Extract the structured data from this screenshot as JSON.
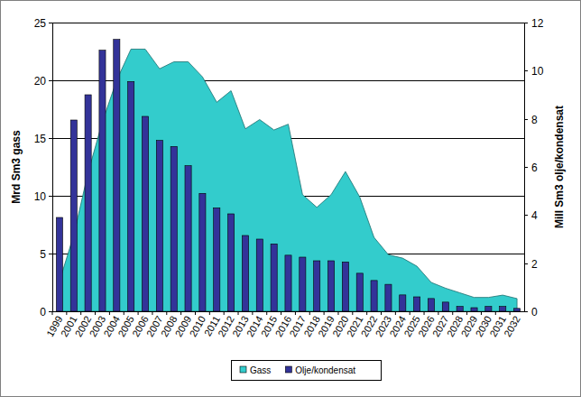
{
  "chart_data": {
    "type": "combo",
    "ylabel": "Mrd Sm3 gass",
    "y2label": "Mill Sm3 olje/kondensat",
    "categories": [
      "1999",
      "2001",
      "2002",
      "2003",
      "2004",
      "2005",
      "2006",
      "2007",
      "2008",
      "2009",
      "2010",
      "2011",
      "2012",
      "2013",
      "2014",
      "2015",
      "2016",
      "2017",
      "2018",
      "2019",
      "2020",
      "2021",
      "2022",
      "2023",
      "2024",
      "2025",
      "2026",
      "2027",
      "2028",
      "2029",
      "2030",
      "2031",
      "2032"
    ],
    "series": [
      {
        "name": "Gass",
        "type": "area",
        "color": "#33cccc",
        "values": [
          2.6,
          6.6,
          12.0,
          16.4,
          20.0,
          22.7,
          22.7,
          21.0,
          21.6,
          21.6,
          20.3,
          18.1,
          19.1,
          15.8,
          16.6,
          15.7,
          16.2,
          10.1,
          9.0,
          10.1,
          12.1,
          9.9,
          6.4,
          4.9,
          4.6,
          3.9,
          2.5,
          2.0,
          1.6,
          1.2,
          1.2,
          1.4,
          1.1
        ]
      },
      {
        "name": "Olje/kondensat",
        "type": "bar",
        "axis": "y2",
        "color": "#333399",
        "values": [
          3.9,
          7.95,
          9.0,
          10.85,
          11.3,
          9.55,
          8.1,
          7.1,
          6.85,
          6.05,
          4.9,
          4.3,
          4.05,
          3.15,
          3.0,
          2.8,
          2.33,
          2.25,
          2.1,
          2.1,
          2.05,
          1.58,
          1.28,
          1.12,
          0.68,
          0.6,
          0.53,
          0.38,
          0.2,
          0.15,
          0.2,
          0.2,
          0.12
        ]
      }
    ],
    "ylim": [
      0,
      25
    ],
    "yticks": [
      0,
      5,
      10,
      15,
      20,
      25
    ],
    "y2lim": [
      0,
      12
    ],
    "y2ticks": [
      0,
      2,
      4,
      6,
      8,
      10,
      12
    ],
    "grid": true,
    "legend": "bottom"
  }
}
